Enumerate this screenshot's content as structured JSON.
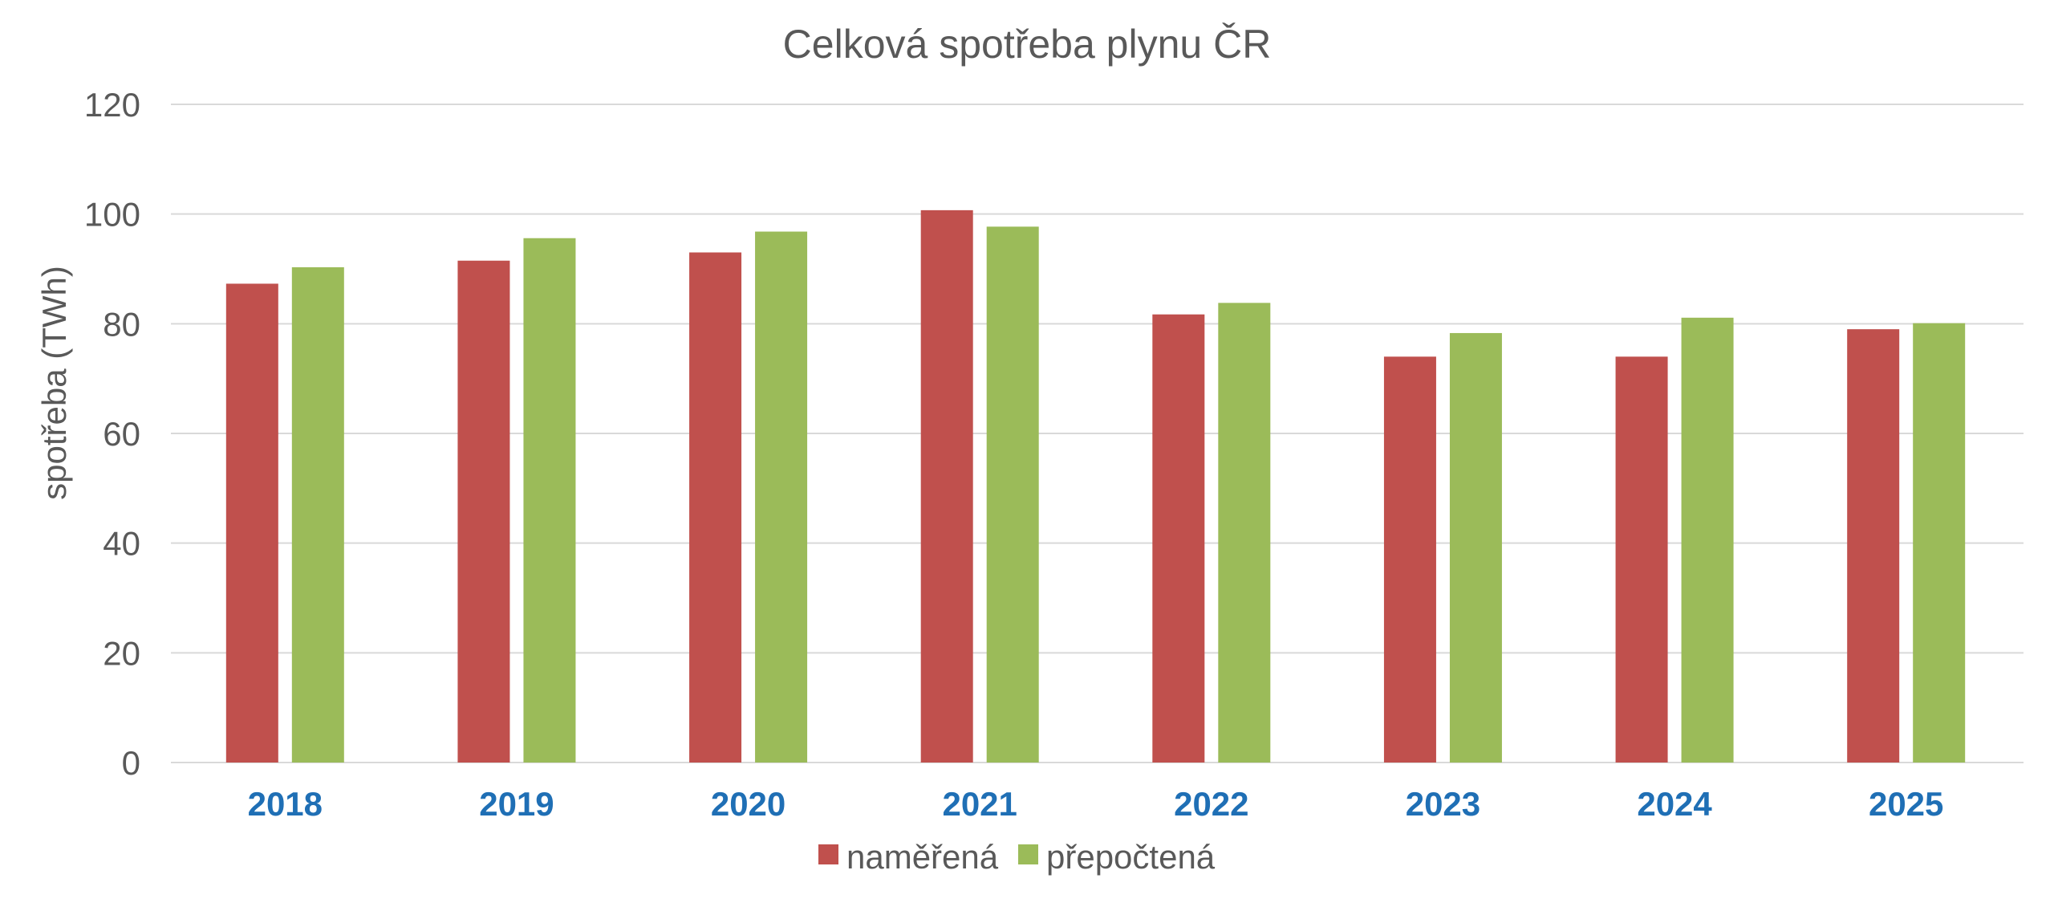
{
  "chart_data": {
    "type": "bar",
    "title": "Celková spotřeba plynu ČR",
    "xlabel": "",
    "ylabel": "spotřeba (TWh)",
    "ylim": [
      0,
      120
    ],
    "yticks": [
      0,
      20,
      40,
      60,
      80,
      100,
      120
    ],
    "grid": true,
    "legend_position": "bottom",
    "categories": [
      "2018",
      "2019",
      "2020",
      "2021",
      "2022",
      "2023",
      "2024",
      "2025"
    ],
    "series": [
      {
        "name": "naměřená",
        "color": "#c0504d",
        "values": [
          87.3,
          91.5,
          93.0,
          100.7,
          81.7,
          74.0,
          74.0,
          79.0
        ]
      },
      {
        "name": "přepočtená",
        "color": "#9bbb59",
        "values": [
          90.3,
          95.6,
          96.8,
          97.7,
          83.8,
          78.3,
          81.1,
          80.1
        ]
      }
    ],
    "xtick_color": "#1f6fb5"
  }
}
